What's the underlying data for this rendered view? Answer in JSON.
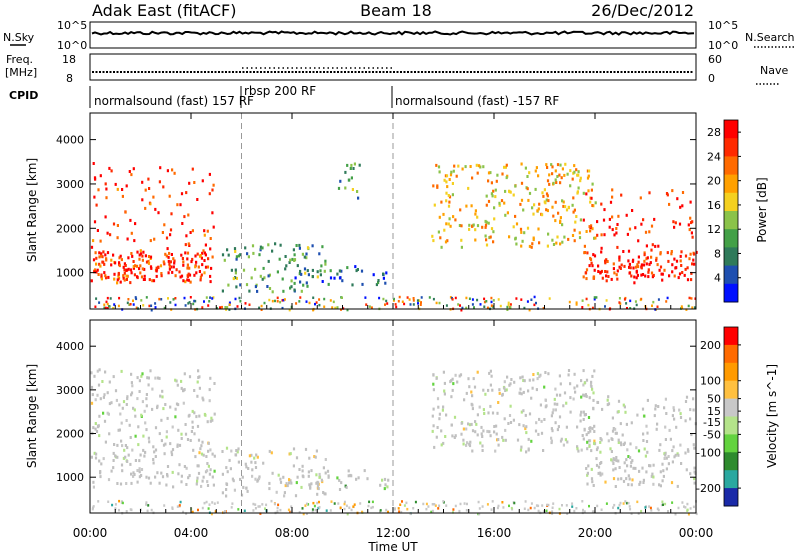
{
  "header": {
    "station": "Adak East (fitACF)",
    "beam": "Beam 18",
    "date": "26/Dec/2012"
  },
  "panels": {
    "noise": {
      "left_label": "N.Sky",
      "right_label": "N.Search",
      "left_ticks": [
        "10^5",
        "10^0"
      ],
      "right_ticks": [
        "10^5",
        "10^0"
      ]
    },
    "freq": {
      "left_label_1": "Freq.",
      "left_label_2": "[MHz]",
      "right_label": "Nave",
      "left_ticks": [
        "18",
        "8"
      ],
      "right_ticks": [
        "60",
        "0"
      ]
    },
    "cpid": {
      "label": "CPID",
      "segments": [
        {
          "text": "normalsound (fast) 157 RF",
          "start_h": 0,
          "end_h": 6
        },
        {
          "text": "rbsp 200 RF",
          "start_h": 6,
          "end_h": 12
        },
        {
          "text": "normalsound (fast) -157 RF",
          "start_h": 12,
          "end_h": 24
        }
      ]
    }
  },
  "chart_data": [
    {
      "type": "heatmap",
      "title": "",
      "xlabel": "Time UT",
      "ylabel": "Slant Range [km]",
      "x_range_hours": [
        0,
        24
      ],
      "x_ticks": [
        "00:00",
        "04:00",
        "08:00",
        "12:00",
        "16:00",
        "20:00",
        "00:00"
      ],
      "ylim": [
        180,
        4600
      ],
      "y_ticks": [
        1000,
        2000,
        3000,
        4000
      ],
      "colorbar": {
        "label": "Power [dB]",
        "ticks": [
          4,
          8,
          12,
          16,
          20,
          24,
          28
        ],
        "range": [
          0,
          30
        ],
        "colors": [
          "#0010ff",
          "#1e4fb0",
          "#2f7a5a",
          "#43a047",
          "#8bc34a",
          "#f4d020",
          "#ffa000",
          "#ff6a00",
          "#ff2a00",
          "#ff0000"
        ]
      },
      "echo_regions": [
        {
          "t0": 0.0,
          "t1": 4.9,
          "r_bottom": 800,
          "r_top": 3500,
          "dense_range": [
            850,
            1500
          ],
          "intensity": 26
        },
        {
          "t0": 5.2,
          "t1": 9.3,
          "r_bottom": 600,
          "r_top": 1700,
          "intensity": 10
        },
        {
          "t0": 8.0,
          "t1": 11.8,
          "r_bottom": 750,
          "r_top": 1200,
          "intensity": 6
        },
        {
          "t0": 9.8,
          "t1": 10.7,
          "r_bottom": 2700,
          "r_top": 3500,
          "intensity": 10
        },
        {
          "t0": 13.5,
          "t1": 20.0,
          "r_bottom": 1600,
          "r_top": 3500,
          "intensity": 18
        },
        {
          "t0": 19.5,
          "t1": 24.0,
          "r_bottom": 800,
          "r_top": 2900,
          "dense_range": [
            850,
            1500
          ],
          "intensity": 27
        }
      ]
    },
    {
      "type": "heatmap",
      "title": "",
      "xlabel": "Time UT",
      "ylabel": "Slant Range [km]",
      "x_range_hours": [
        0,
        24
      ],
      "x_ticks": [
        "00:00",
        "04:00",
        "08:00",
        "12:00",
        "16:00",
        "20:00",
        "00:00"
      ],
      "ylim": [
        180,
        4600
      ],
      "y_ticks": [
        1000,
        2000,
        3000,
        4000
      ],
      "colorbar": {
        "label": "Velocity [m s^-1]",
        "ticks": [
          200,
          100,
          50,
          15,
          -15,
          -50,
          -100,
          -200
        ],
        "range": [
          -250,
          250
        ],
        "colors": [
          "#1a2aa8",
          "#2aa8a0",
          "#2e8b2e",
          "#63d33f",
          "#b4e38a",
          "#c8c8c8",
          "#ffc040",
          "#ff9a00",
          "#ff6a00",
          "#ff0000"
        ]
      },
      "ground_scatter_color": "#c0c0c0",
      "echo_regions": [
        {
          "t0": 0.0,
          "t1": 4.9,
          "r_bottom": 800,
          "r_top": 3500,
          "velocity": 0
        },
        {
          "t0": 5.2,
          "t1": 9.3,
          "r_bottom": 600,
          "r_top": 1700,
          "velocity": 40
        },
        {
          "t0": 8.0,
          "t1": 11.8,
          "r_bottom": 750,
          "r_top": 1200,
          "velocity": -60
        },
        {
          "t0": 13.5,
          "t1": 20.0,
          "r_bottom": 1600,
          "r_top": 3500,
          "velocity": 0
        },
        {
          "t0": 19.5,
          "t1": 24.0,
          "r_bottom": 800,
          "r_top": 2900,
          "velocity": 0
        }
      ]
    }
  ],
  "mode_change_hours": [
    6,
    12
  ]
}
